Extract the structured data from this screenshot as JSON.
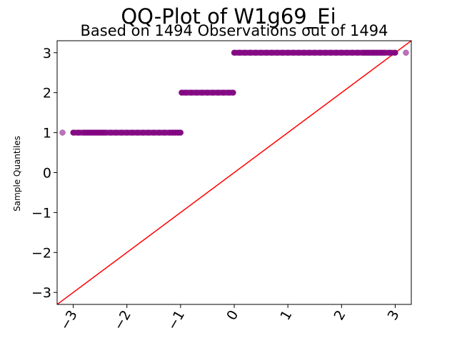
{
  "chart_data": {
    "type": "scatter",
    "title": "QQ-Plot of W1g69_Ei",
    "subtitle": "Based on 1494 Observations out of 1494",
    "xlabel": "",
    "ylabel": "Sample Quantiles",
    "xlim": [
      -3.3,
      3.3
    ],
    "ylim": [
      -3.3,
      3.3
    ],
    "x_ticks": [
      -3,
      -2,
      -1,
      0,
      1,
      2,
      3
    ],
    "x_tick_labels": [
      "−3",
      "−2",
      "−1",
      "0",
      "1",
      "2",
      "3"
    ],
    "y_ticks": [
      -3,
      -2,
      -1,
      0,
      1,
      2,
      3
    ],
    "y_tick_labels": [
      "−3",
      "−2",
      "−1",
      "0",
      "1",
      "2",
      "3"
    ],
    "grid": false,
    "reference_line": {
      "color": "#ff0000",
      "slope": 1,
      "intercept": 0
    },
    "series": [
      {
        "color": "#800080",
        "groups": [
          {
            "y": 1,
            "x": [
              -3.2,
              -3.0,
              -2.9,
              -2.8,
              -2.75,
              -2.7,
              -2.65,
              -2.6,
              -2.55,
              -2.5,
              -2.45,
              -2.4,
              -2.3,
              -2.2,
              -2.1,
              -2.0,
              -1.9,
              -1.8,
              -1.7,
              -1.6,
              -1.5,
              -1.4,
              -1.3,
              -1.2,
              -1.15,
              -1.1,
              -1.05,
              -1.0
            ]
          },
          {
            "y": 2,
            "x": [
              -0.98,
              -0.9,
              -0.8,
              -0.7,
              -0.6,
              -0.5,
              -0.4,
              -0.3,
              -0.2,
              -0.1,
              -0.02
            ]
          },
          {
            "y": 3,
            "x": [
              0.0,
              0.1,
              0.2,
              0.3,
              0.4,
              0.5,
              0.6,
              0.7,
              0.8,
              0.9,
              1.0,
              1.1,
              1.2,
              1.3,
              1.4,
              1.5,
              1.6,
              1.7,
              1.8,
              1.9,
              2.0,
              2.1,
              2.2,
              2.3,
              2.4,
              2.45,
              2.5,
              2.55,
              2.6,
              2.65,
              2.7,
              2.75,
              2.8,
              2.9,
              3.0,
              3.2
            ]
          }
        ]
      }
    ]
  }
}
